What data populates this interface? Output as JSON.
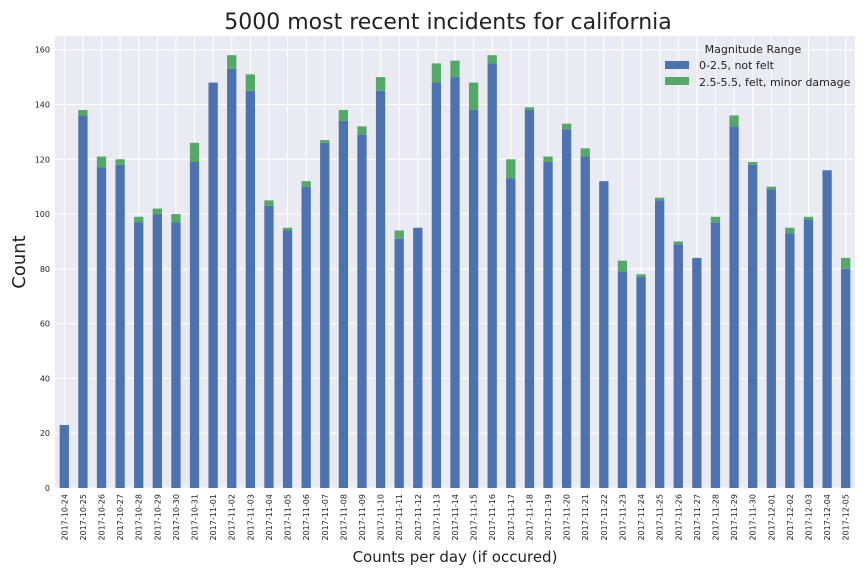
{
  "chart_data": {
    "type": "bar",
    "stacked": true,
    "title": "5000 most recent incidents for california",
    "xlabel": "Counts per day (if occured)",
    "ylabel": "Count",
    "ylim": [
      0,
      165
    ],
    "yticks": [
      0,
      20,
      40,
      60,
      80,
      100,
      120,
      140,
      160
    ],
    "grid": true,
    "legend_title": "Magnitude Range",
    "legend_position": "top-right",
    "categories": [
      "2017-10-24",
      "2017-10-25",
      "2017-10-26",
      "2017-10-27",
      "2017-10-28",
      "2017-10-29",
      "2017-10-30",
      "2017-10-31",
      "2017-11-01",
      "2017-11-02",
      "2017-11-03",
      "2017-11-04",
      "2017-11-05",
      "2017-11-06",
      "2017-11-07",
      "2017-11-08",
      "2017-11-09",
      "2017-11-10",
      "2017-11-11",
      "2017-11-12",
      "2017-11-13",
      "2017-11-14",
      "2017-11-15",
      "2017-11-16",
      "2017-11-17",
      "2017-11-18",
      "2017-11-19",
      "2017-11-20",
      "2017-11-21",
      "2017-11-22",
      "2017-11-23",
      "2017-11-24",
      "2017-11-25",
      "2017-11-26",
      "2017-11-27",
      "2017-11-28",
      "2017-11-29",
      "2017-11-30",
      "2017-12-01",
      "2017-12-02",
      "2017-12-03",
      "2017-12-04",
      "2017-12-05"
    ],
    "series": [
      {
        "name": "0-2.5, not felt",
        "color": "#4c72b0",
        "values": [
          23,
          136,
          117,
          118,
          97,
          100,
          97,
          119,
          148,
          153,
          145,
          103,
          94,
          110,
          126,
          134,
          129,
          145,
          91,
          95,
          148,
          150,
          138,
          155,
          113,
          138,
          119,
          131,
          121,
          112,
          79,
          77,
          105,
          89,
          84,
          97,
          132,
          118,
          109,
          93,
          98,
          116,
          80
        ]
      },
      {
        "name": "2.5-5.5, felt, minor damage",
        "color": "#55a868",
        "values": [
          0,
          2,
          4,
          2,
          2,
          2,
          3,
          7,
          0,
          5,
          6,
          2,
          1,
          2,
          1,
          4,
          3,
          5,
          3,
          0,
          7,
          6,
          10,
          3,
          7,
          1,
          2,
          2,
          3,
          0,
          4,
          1,
          1,
          1,
          0,
          2,
          4,
          1,
          1,
          2,
          1,
          0,
          4
        ]
      }
    ]
  }
}
